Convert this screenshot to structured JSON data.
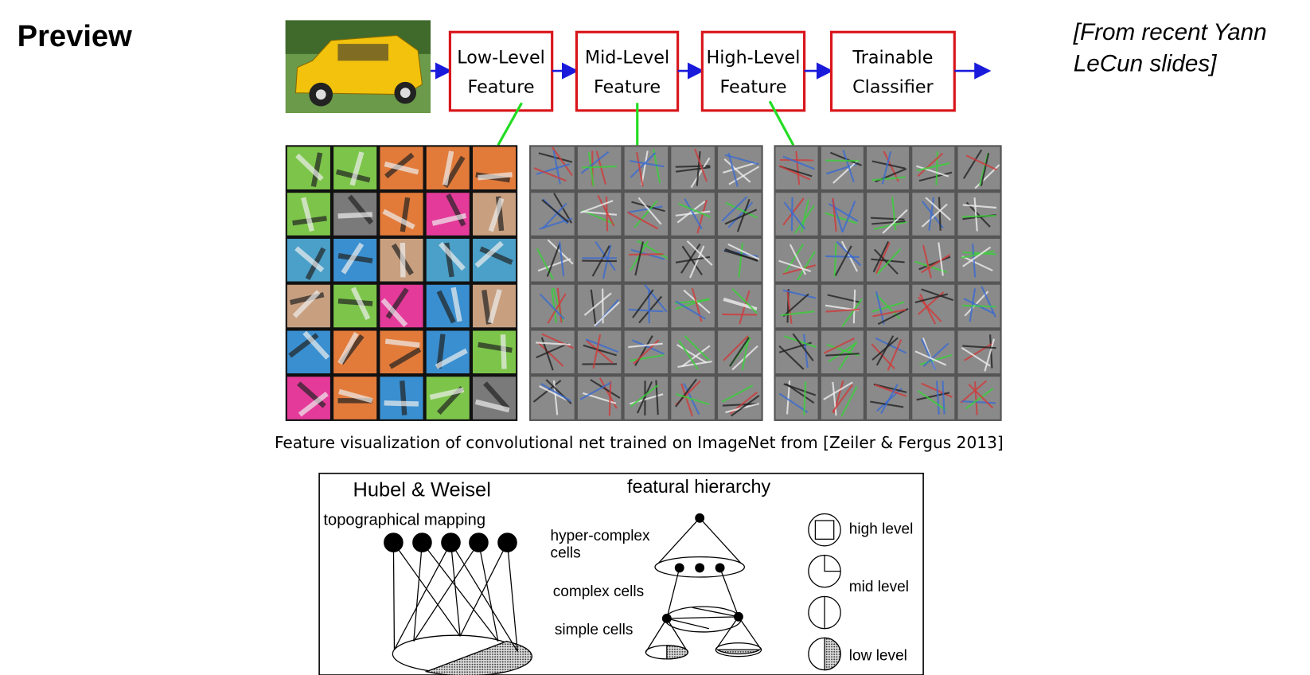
{
  "header": {
    "title": "Preview",
    "source": [
      "[From recent Yann",
      "LeCun slides]"
    ]
  },
  "pipeline": {
    "stages": [
      [
        "Low-Level",
        "Feature"
      ],
      [
        "Mid-Level",
        "Feature"
      ],
      [
        "High-Level",
        "Feature"
      ],
      [
        "Trainable",
        "Classifier"
      ]
    ]
  },
  "caption": "Feature visualization of convolutional net trained on ImageNet from [Zeiler & Fergus 2013]",
  "hubel": {
    "title": "Hubel & Weisel",
    "subtitle": "topographical mapping",
    "hierarchy_title": "featural hierarchy",
    "cell_labels": [
      [
        "hyper-complex",
        "cells"
      ],
      [
        "complex cells"
      ],
      [
        "simple cells"
      ]
    ],
    "levels": [
      "high level",
      "mid level",
      "low level"
    ]
  }
}
